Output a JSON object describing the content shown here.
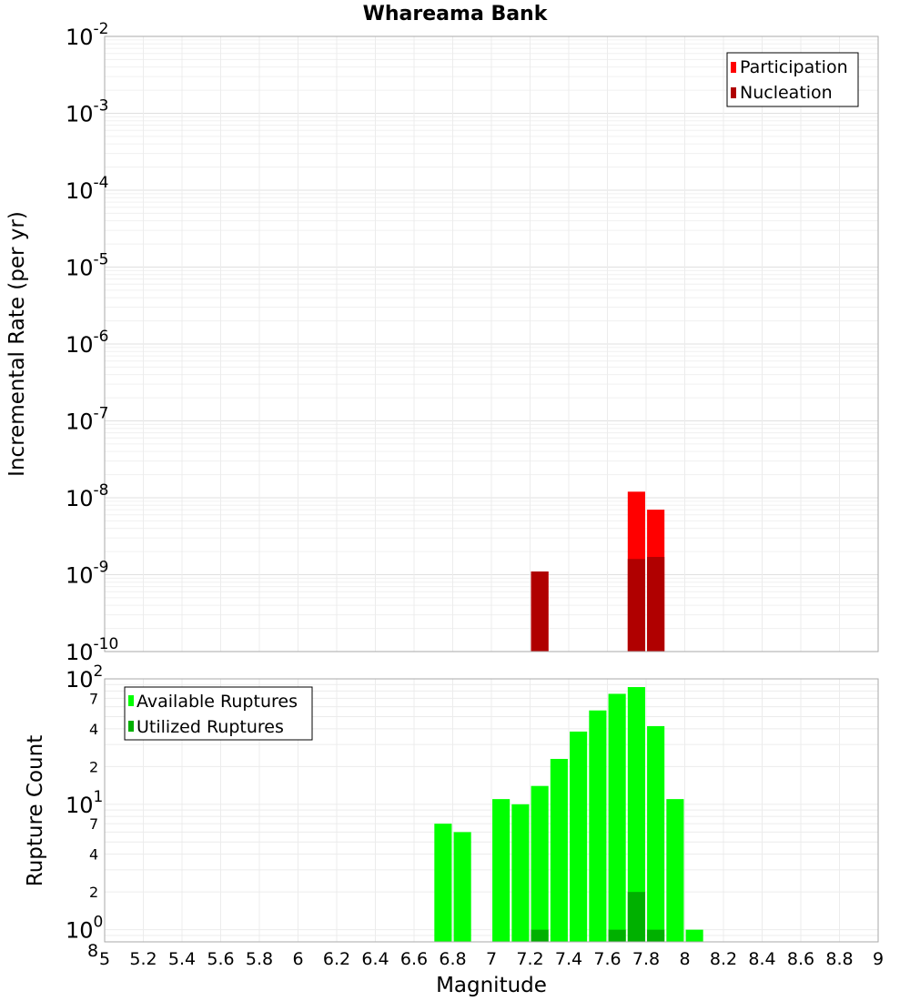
{
  "chart_data": [
    {
      "type": "bar",
      "title": "Whareama Bank",
      "xlabel": "",
      "ylabel": "Incremental Rate (per yr)",
      "yscale": "log",
      "ylim": [
        1e-10,
        0.01
      ],
      "xlim": [
        5,
        9
      ],
      "ytick_labels": [
        {
          "base": "10",
          "exp": "-2"
        },
        {
          "base": "10",
          "exp": "-3"
        },
        {
          "base": "10",
          "exp": "-4"
        },
        {
          "base": "10",
          "exp": "-5"
        },
        {
          "base": "10",
          "exp": "-6"
        },
        {
          "base": "10",
          "exp": "-7"
        },
        {
          "base": "10",
          "exp": "-8"
        },
        {
          "base": "10",
          "exp": "-9"
        },
        {
          "base": "10",
          "exp": "-10"
        }
      ],
      "legend_position": "top-right",
      "grid": true,
      "series": [
        {
          "name": "Participation",
          "color": "#ff0000",
          "x": [
            7.25,
            7.75,
            7.85
          ],
          "values": [
            1.1e-09,
            1.2e-08,
            7e-09
          ]
        },
        {
          "name": "Nucleation",
          "color": "#b00000",
          "x": [
            7.25,
            7.75,
            7.85
          ],
          "values": [
            1.1e-09,
            1.6e-09,
            1.7e-09
          ]
        }
      ]
    },
    {
      "type": "bar",
      "title": "",
      "xlabel": "Magnitude",
      "ylabel": "Rupture Count",
      "yscale": "log",
      "ylim": [
        0.8,
        100
      ],
      "xlim": [
        5,
        9
      ],
      "ytick_labels": [
        {
          "base": "10",
          "exp": "2"
        },
        {
          "base": "",
          "exp": "7"
        },
        {
          "base": "",
          "exp": "4"
        },
        {
          "base": "",
          "exp": "2"
        },
        {
          "base": "10",
          "exp": "1"
        },
        {
          "base": "",
          "exp": "7"
        },
        {
          "base": "",
          "exp": "4"
        },
        {
          "base": "",
          "exp": "2"
        },
        {
          "base": "10",
          "exp": "0"
        },
        {
          "base": "8",
          "exp": ""
        }
      ],
      "xtick_labels": [
        "5",
        "5.2",
        "5.4",
        "5.6",
        "5.8",
        "6",
        "6.2",
        "6.4",
        "6.6",
        "6.8",
        "7",
        "7.2",
        "7.4",
        "7.6",
        "7.8",
        "8",
        "8.2",
        "8.4",
        "8.6",
        "8.8",
        "9"
      ],
      "legend_position": "top-left",
      "grid": true,
      "series": [
        {
          "name": "Available Ruptures",
          "color": "#00ff00",
          "x": [
            6.75,
            6.85,
            7.05,
            7.15,
            7.25,
            7.35,
            7.45,
            7.55,
            7.65,
            7.75,
            7.85,
            7.95,
            8.05
          ],
          "values": [
            7,
            6,
            11,
            10,
            14,
            23,
            38,
            56,
            76,
            86,
            42,
            11,
            1
          ]
        },
        {
          "name": "Utilized Ruptures",
          "color": "#00b000",
          "x": [
            7.25,
            7.65,
            7.75,
            7.85
          ],
          "values": [
            1,
            1,
            2,
            1
          ]
        }
      ]
    }
  ]
}
